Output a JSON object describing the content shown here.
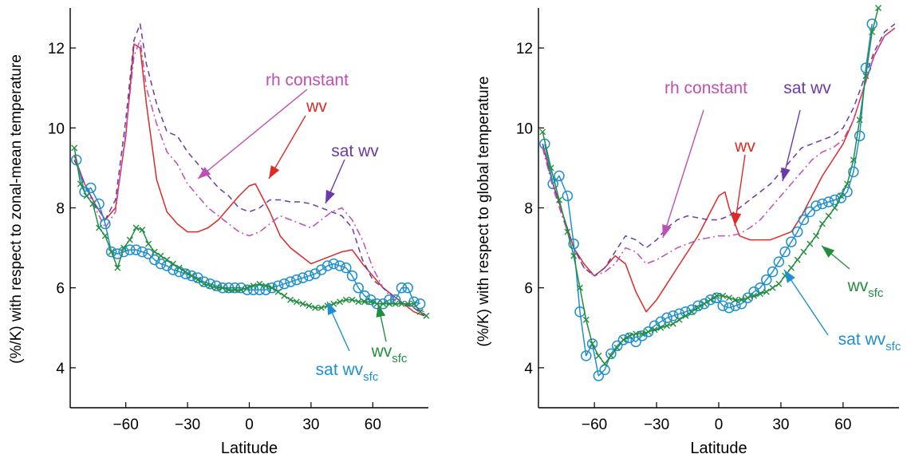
{
  "chart_data": [
    {
      "type": "line",
      "xlabel": "Latitude",
      "ylabel": "(%/K) with respect to zonal-mean temperature",
      "xlim": [
        -87,
        87
      ],
      "ylim": [
        3,
        13
      ],
      "xticks": [
        -60,
        -30,
        0,
        30,
        60
      ],
      "yticks": [
        4,
        6,
        8,
        10,
        12
      ],
      "series": [
        {
          "name": "wv",
          "color": "#dd2a27",
          "style": "solid",
          "x": [
            -85,
            -80,
            -75,
            -70,
            -65,
            -60,
            -56,
            -53,
            -50,
            -45,
            -40,
            -35,
            -30,
            -25,
            -20,
            -15,
            -10,
            -5,
            0,
            3,
            5,
            10,
            15,
            20,
            25,
            30,
            35,
            40,
            45,
            50,
            55,
            60,
            65,
            70,
            75,
            80,
            85
          ],
          "y": [
            9.3,
            8.6,
            8.1,
            7.7,
            8.0,
            9.8,
            12.1,
            12.0,
            10.6,
            8.7,
            7.9,
            7.6,
            7.4,
            7.4,
            7.5,
            7.7,
            8.0,
            8.3,
            8.55,
            8.6,
            8.4,
            7.9,
            7.3,
            7.0,
            6.8,
            6.6,
            6.7,
            6.8,
            6.9,
            6.95,
            6.6,
            6.3,
            6.0,
            5.8,
            5.6,
            5.4,
            5.3
          ]
        },
        {
          "name": "rh constant",
          "color": "#c04fb5",
          "style": "dashdot",
          "x": [
            -85,
            -80,
            -75,
            -70,
            -65,
            -60,
            -56,
            -53,
            -50,
            -45,
            -40,
            -35,
            -30,
            -25,
            -20,
            -15,
            -10,
            -5,
            0,
            5,
            10,
            15,
            20,
            25,
            30,
            35,
            40,
            45,
            50,
            55,
            60,
            65,
            70,
            75,
            80,
            85
          ],
          "y": [
            9.2,
            8.6,
            8.0,
            7.5,
            7.9,
            9.9,
            11.8,
            12.2,
            11.0,
            10.1,
            9.4,
            9.1,
            8.6,
            8.3,
            8.0,
            7.8,
            7.6,
            7.4,
            7.3,
            7.4,
            7.6,
            7.8,
            7.7,
            7.6,
            7.5,
            7.7,
            7.9,
            8.0,
            7.7,
            7.2,
            6.5,
            6.0,
            5.7,
            5.6,
            5.5,
            5.4
          ]
        },
        {
          "name": "sat wv",
          "color": "#6a3aa8",
          "style": "dashed",
          "x": [
            -85,
            -80,
            -75,
            -70,
            -65,
            -60,
            -56,
            -53,
            -50,
            -45,
            -40,
            -35,
            -30,
            -25,
            -20,
            -15,
            -10,
            -5,
            0,
            5,
            10,
            15,
            20,
            25,
            30,
            35,
            40,
            45,
            50,
            55,
            60,
            65,
            70,
            75,
            80,
            85
          ],
          "y": [
            9.2,
            8.6,
            8.1,
            7.7,
            8.2,
            10.2,
            12.2,
            12.6,
            11.6,
            10.6,
            9.9,
            9.8,
            9.4,
            9.1,
            8.8,
            8.5,
            8.3,
            8.0,
            7.9,
            8.0,
            8.2,
            8.2,
            8.15,
            8.15,
            8.1,
            8.0,
            7.9,
            7.8,
            7.5,
            6.7,
            6.2,
            6.0,
            5.8,
            5.6,
            5.5,
            5.3
          ]
        },
        {
          "name": "sat wv",
          "sub": "sfc",
          "color": "#1f8fd0",
          "style": "circles",
          "x": [
            -84,
            -80,
            -77,
            -73,
            -70,
            -67,
            -64,
            -61,
            -58,
            -55,
            -52,
            -49,
            -46,
            -43,
            -40,
            -37,
            -34,
            -31,
            -28,
            -25,
            -22,
            -19,
            -16,
            -13,
            -10,
            -7,
            -4,
            -1,
            2,
            5,
            8,
            11,
            14,
            17,
            20,
            23,
            26,
            29,
            32,
            35,
            38,
            41,
            44,
            47,
            50,
            53,
            56,
            59,
            62,
            65,
            68,
            71,
            74,
            77,
            80,
            83
          ],
          "y": [
            9.2,
            8.4,
            8.5,
            8.1,
            7.6,
            6.9,
            6.85,
            6.9,
            6.95,
            6.95,
            6.9,
            6.85,
            6.7,
            6.6,
            6.55,
            6.45,
            6.4,
            6.35,
            6.3,
            6.25,
            6.15,
            6.1,
            6.05,
            6.0,
            6.0,
            6.0,
            6.0,
            5.95,
            5.95,
            5.95,
            5.95,
            6.0,
            6.05,
            6.1,
            6.15,
            6.2,
            6.25,
            6.3,
            6.35,
            6.45,
            6.55,
            6.6,
            6.55,
            6.5,
            6.3,
            6.0,
            5.8,
            5.7,
            5.6,
            5.6,
            5.7,
            5.7,
            6.0,
            6.0,
            5.65,
            5.6
          ]
        },
        {
          "name": "wv",
          "sub": "sfc",
          "color": "#238d3f",
          "style": "crosses",
          "x": [
            -85,
            -82,
            -79,
            -76,
            -73,
            -70,
            -67,
            -64,
            -61,
            -58,
            -55,
            -52,
            -49,
            -46,
            -43,
            -40,
            -37,
            -34,
            -31,
            -28,
            -25,
            -22,
            -19,
            -16,
            -13,
            -10,
            -7,
            -4,
            -1,
            2,
            5,
            8,
            11,
            14,
            17,
            20,
            23,
            26,
            29,
            32,
            35,
            38,
            41,
            44,
            47,
            50,
            53,
            56,
            59,
            62,
            65,
            68,
            71,
            74,
            77,
            80,
            83,
            86
          ],
          "y": [
            9.5,
            8.6,
            8.3,
            8.1,
            7.5,
            7.3,
            6.9,
            6.5,
            7.0,
            7.2,
            7.5,
            7.45,
            7.1,
            6.9,
            6.8,
            6.7,
            6.6,
            6.5,
            6.4,
            6.3,
            6.2,
            6.1,
            6.05,
            6.0,
            6.0,
            5.95,
            5.95,
            5.95,
            6.0,
            6.05,
            6.1,
            6.05,
            6.0,
            5.9,
            5.8,
            5.7,
            5.65,
            5.6,
            5.55,
            5.5,
            5.5,
            5.55,
            5.6,
            5.65,
            5.7,
            5.7,
            5.65,
            5.65,
            5.65,
            5.6,
            5.6,
            5.6,
            5.6,
            5.6,
            5.6,
            5.6,
            5.4,
            5.3
          ]
        }
      ],
      "annotations": [
        {
          "text": "rh constant",
          "color": "#c04fb5"
        },
        {
          "text": "wv",
          "color": "#dd2a27"
        },
        {
          "text": "sat wv",
          "color": "#6a3aa8"
        },
        {
          "text": "sat wv",
          "sub": "sfc",
          "color": "#1f8fd0"
        },
        {
          "text": "wv",
          "sub": "sfc",
          "color": "#238d3f"
        }
      ]
    },
    {
      "type": "line",
      "xlabel": "Latitude",
      "ylabel": "(%/K) with respect to global temperature",
      "xlim": [
        -87,
        87
      ],
      "ylim": [
        3,
        13
      ],
      "xticks": [
        -60,
        -30,
        0,
        30,
        60
      ],
      "yticks": [
        4,
        6,
        8,
        10,
        12
      ],
      "series": [
        {
          "name": "wv",
          "color": "#dd2a27",
          "style": "solid",
          "x": [
            -85,
            -80,
            -75,
            -70,
            -65,
            -60,
            -55,
            -50,
            -45,
            -40,
            -35,
            -30,
            -25,
            -20,
            -15,
            -10,
            -5,
            0,
            3,
            5,
            10,
            15,
            20,
            25,
            30,
            35,
            40,
            45,
            50,
            55,
            60,
            65,
            70,
            75,
            80,
            85
          ],
          "y": [
            9.6,
            8.6,
            7.8,
            7.0,
            6.6,
            6.3,
            6.5,
            6.8,
            6.6,
            5.9,
            5.4,
            5.7,
            6.1,
            6.5,
            6.9,
            7.3,
            7.8,
            8.3,
            8.4,
            8.0,
            7.3,
            7.2,
            7.2,
            7.2,
            7.3,
            7.4,
            7.8,
            8.3,
            8.8,
            9.2,
            9.6,
            10.2,
            11.0,
            11.8,
            12.3,
            12.5
          ]
        },
        {
          "name": "rh constant",
          "color": "#c04fb5",
          "style": "dashdot",
          "x": [
            -85,
            -80,
            -75,
            -70,
            -65,
            -60,
            -55,
            -50,
            -45,
            -40,
            -35,
            -30,
            -25,
            -20,
            -15,
            -10,
            -5,
            0,
            5,
            10,
            15,
            20,
            25,
            30,
            35,
            40,
            45,
            50,
            55,
            60,
            65,
            70,
            75,
            80,
            85
          ],
          "y": [
            9.5,
            8.5,
            7.7,
            7.0,
            6.5,
            6.3,
            6.4,
            6.6,
            7.0,
            6.9,
            6.6,
            6.7,
            6.85,
            7.0,
            7.1,
            7.2,
            7.25,
            7.3,
            7.3,
            7.35,
            7.5,
            7.7,
            8.0,
            8.3,
            8.6,
            8.9,
            9.2,
            9.4,
            9.5,
            9.7,
            10.2,
            11.0,
            11.8,
            12.3,
            12.5
          ]
        },
        {
          "name": "sat wv",
          "color": "#6a3aa8",
          "style": "dashed",
          "x": [
            -85,
            -80,
            -75,
            -70,
            -65,
            -60,
            -55,
            -50,
            -45,
            -40,
            -35,
            -30,
            -25,
            -20,
            -15,
            -10,
            -5,
            0,
            5,
            10,
            15,
            20,
            25,
            30,
            35,
            40,
            45,
            50,
            55,
            60,
            65,
            70,
            75,
            80,
            85
          ],
          "y": [
            9.6,
            8.6,
            7.8,
            7.0,
            6.5,
            6.3,
            6.5,
            6.9,
            7.3,
            7.2,
            7.0,
            7.2,
            7.5,
            7.7,
            7.8,
            7.75,
            7.7,
            7.7,
            7.8,
            8.0,
            8.2,
            8.4,
            8.6,
            8.9,
            9.2,
            9.5,
            9.6,
            9.7,
            9.8,
            10.0,
            10.5,
            11.2,
            11.9,
            12.4,
            12.6
          ]
        },
        {
          "name": "sat wv",
          "sub": "sfc",
          "color": "#1f8fd0",
          "style": "circles",
          "x": [
            -84,
            -80,
            -77,
            -73,
            -70,
            -67,
            -64,
            -61,
            -58,
            -55,
            -52,
            -49,
            -46,
            -43,
            -40,
            -37,
            -34,
            -31,
            -28,
            -25,
            -22,
            -19,
            -16,
            -13,
            -10,
            -7,
            -4,
            -1,
            2,
            5,
            8,
            11,
            14,
            17,
            20,
            23,
            26,
            29,
            32,
            35,
            38,
            41,
            44,
            47,
            50,
            53,
            56,
            59,
            62,
            65,
            68,
            71,
            74
          ],
          "y": [
            9.6,
            8.6,
            8.8,
            8.3,
            7.1,
            5.4,
            4.3,
            4.6,
            3.8,
            3.95,
            4.35,
            4.55,
            4.7,
            4.75,
            4.65,
            4.8,
            4.9,
            5.05,
            5.15,
            5.25,
            5.3,
            5.35,
            5.4,
            5.45,
            5.55,
            5.6,
            5.7,
            5.75,
            5.55,
            5.5,
            5.55,
            5.6,
            5.75,
            5.9,
            6.0,
            6.2,
            6.4,
            6.65,
            6.9,
            7.15,
            7.4,
            7.7,
            7.9,
            8.05,
            8.1,
            8.15,
            8.2,
            8.25,
            8.4,
            8.9,
            9.8,
            11.5,
            12.6
          ]
        },
        {
          "name": "wv",
          "sub": "sfc",
          "color": "#238d3f",
          "style": "crosses",
          "x": [
            -85,
            -81,
            -77,
            -73,
            -70,
            -67,
            -64,
            -61,
            -58,
            -55,
            -52,
            -49,
            -46,
            -43,
            -40,
            -37,
            -34,
            -31,
            -28,
            -25,
            -22,
            -19,
            -16,
            -13,
            -10,
            -7,
            -4,
            -1,
            2,
            5,
            8,
            11,
            14,
            17,
            20,
            23,
            26,
            29,
            32,
            35,
            38,
            41,
            44,
            47,
            50,
            53,
            56,
            59,
            62,
            65,
            68,
            71,
            74,
            77
          ],
          "y": [
            9.9,
            9.0,
            8.2,
            7.4,
            6.8,
            6.0,
            5.2,
            4.6,
            4.3,
            4.1,
            4.3,
            4.5,
            4.7,
            4.8,
            4.85,
            4.85,
            4.9,
            4.95,
            5.0,
            5.05,
            5.1,
            5.2,
            5.3,
            5.4,
            5.5,
            5.6,
            5.7,
            5.8,
            5.8,
            5.75,
            5.7,
            5.7,
            5.75,
            5.8,
            5.85,
            5.9,
            6.0,
            6.1,
            6.3,
            6.5,
            6.7,
            6.9,
            7.1,
            7.3,
            7.6,
            7.8,
            8.0,
            8.3,
            8.6,
            9.2,
            10.2,
            11.3,
            12.4,
            13.0
          ]
        }
      ],
      "annotations": [
        {
          "text": "rh constant",
          "color": "#c04fb5"
        },
        {
          "text": "sat wv",
          "color": "#6a3aa8"
        },
        {
          "text": "wv",
          "color": "#dd2a27"
        },
        {
          "text": "wv",
          "sub": "sfc",
          "color": "#238d3f"
        },
        {
          "text": "sat wv",
          "sub": "sfc",
          "color": "#1f8fd0"
        }
      ]
    }
  ]
}
